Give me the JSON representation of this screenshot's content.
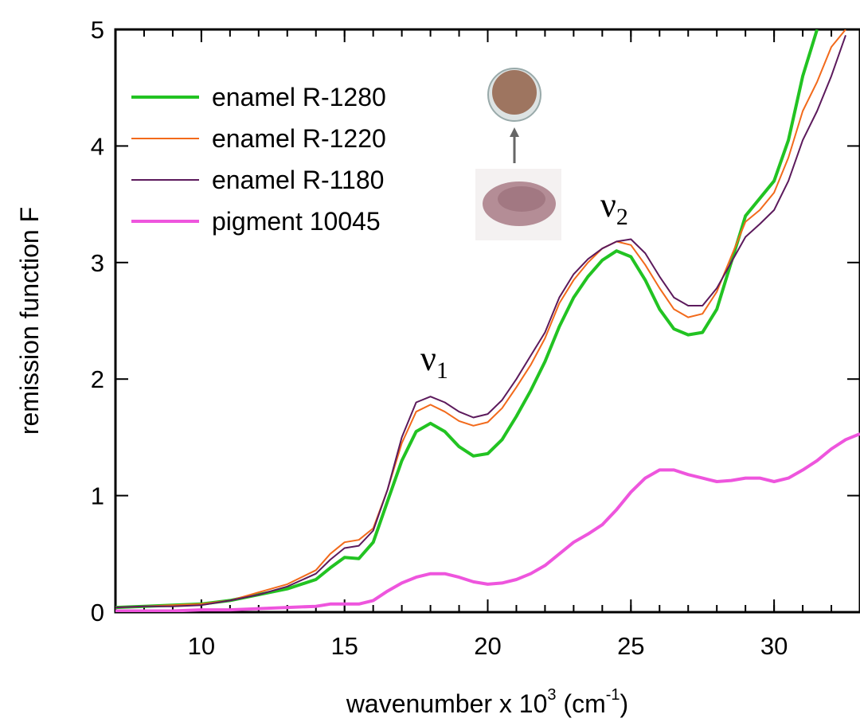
{
  "chart_data": {
    "type": "line",
    "xlabel": [
      "wavenumber x 10",
      "3",
      " (cm",
      "-1",
      ")"
    ],
    "ylabel": "remission function F",
    "annotations": [
      {
        "text": "ν",
        "sub": "1"
      },
      {
        "text": "ν",
        "sub": "2"
      }
    ],
    "xlim": [
      7,
      33
    ],
    "xticks": [
      10,
      15,
      20,
      25,
      30
    ],
    "ylim": [
      0,
      5
    ],
    "yticks": [
      0,
      1,
      2,
      3,
      4,
      5
    ],
    "legend": "upper left",
    "x": [
      7,
      8,
      9,
      10,
      11,
      12,
      13,
      14,
      14.5,
      15,
      15.5,
      16,
      16.5,
      17,
      17.5,
      18,
      18.5,
      19,
      19.5,
      20,
      20.5,
      21,
      21.5,
      22,
      22.5,
      23,
      23.5,
      24,
      24.5,
      25,
      25.5,
      26,
      26.5,
      27,
      27.5,
      28,
      28.5,
      29,
      29.5,
      30,
      30.5,
      31,
      31.5,
      32,
      32.5,
      33
    ],
    "series": [
      {
        "name": "enamel R-1280",
        "color": "#22c322",
        "width": 4,
        "values": [
          0.04,
          0.05,
          0.06,
          0.07,
          0.1,
          0.15,
          0.2,
          0.28,
          0.38,
          0.47,
          0.46,
          0.6,
          0.95,
          1.3,
          1.55,
          1.62,
          1.55,
          1.42,
          1.34,
          1.36,
          1.48,
          1.68,
          1.9,
          2.15,
          2.45,
          2.7,
          2.88,
          3.02,
          3.1,
          3.05,
          2.85,
          2.6,
          2.43,
          2.38,
          2.4,
          2.6,
          3.0,
          3.4,
          3.55,
          3.7,
          4.05,
          4.6,
          5.0,
          null,
          null,
          null
        ]
      },
      {
        "name": "enamel R-1220",
        "color": "#f26a1b",
        "width": 2,
        "values": [
          0.04,
          0.05,
          0.06,
          0.07,
          0.1,
          0.17,
          0.24,
          0.36,
          0.5,
          0.6,
          0.62,
          0.72,
          1.05,
          1.45,
          1.72,
          1.78,
          1.72,
          1.64,
          1.6,
          1.63,
          1.75,
          1.93,
          2.12,
          2.35,
          2.65,
          2.85,
          3.0,
          3.12,
          3.18,
          3.15,
          2.98,
          2.78,
          2.6,
          2.53,
          2.56,
          2.75,
          3.05,
          3.35,
          3.45,
          3.6,
          3.9,
          4.3,
          4.55,
          4.85,
          5.0,
          null
        ]
      },
      {
        "name": "enamel R-1180",
        "color": "#5c1a5c",
        "width": 2,
        "values": [
          0.04,
          0.05,
          0.05,
          0.06,
          0.1,
          0.15,
          0.22,
          0.33,
          0.45,
          0.55,
          0.57,
          0.7,
          1.05,
          1.5,
          1.8,
          1.85,
          1.8,
          1.72,
          1.67,
          1.7,
          1.82,
          2.0,
          2.2,
          2.4,
          2.7,
          2.9,
          3.03,
          3.12,
          3.18,
          3.2,
          3.08,
          2.88,
          2.7,
          2.63,
          2.63,
          2.78,
          3.0,
          3.22,
          3.33,
          3.45,
          3.7,
          4.05,
          4.3,
          4.6,
          4.95,
          null
        ]
      },
      {
        "name": "pigment 10045",
        "color": "#ee55dd",
        "width": 4,
        "values": [
          0.01,
          0.01,
          0.01,
          0.02,
          0.02,
          0.03,
          0.04,
          0.05,
          0.07,
          0.07,
          0.07,
          0.1,
          0.18,
          0.25,
          0.3,
          0.33,
          0.33,
          0.3,
          0.26,
          0.24,
          0.25,
          0.28,
          0.33,
          0.4,
          0.5,
          0.6,
          0.67,
          0.75,
          0.88,
          1.03,
          1.15,
          1.22,
          1.22,
          1.18,
          1.15,
          1.12,
          1.13,
          1.15,
          1.15,
          1.12,
          1.15,
          1.22,
          1.3,
          1.4,
          1.48,
          1.53
        ]
      }
    ]
  }
}
